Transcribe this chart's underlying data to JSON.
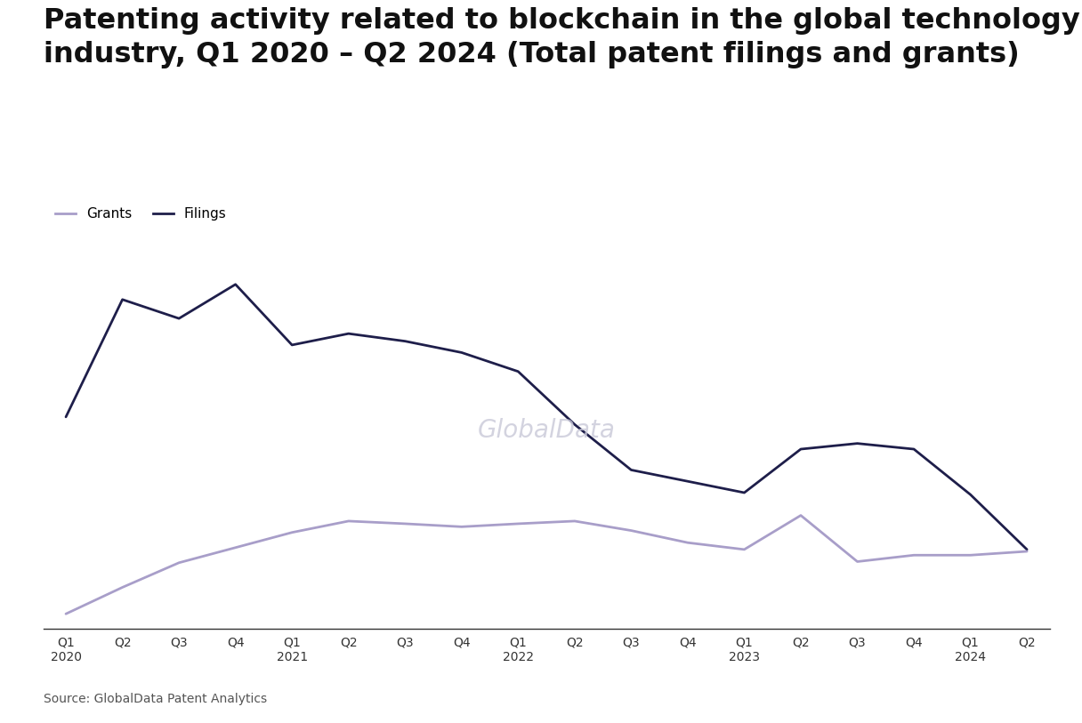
{
  "title": "Patenting activity related to blockchain in the global technology\nindustry, Q1 2020 – Q2 2024 (Total patent filings and grants)",
  "source": "Source: GlobalData Patent Analytics",
  "watermark": "GlobalData",
  "x_labels": [
    "Q1\n2020",
    "Q2",
    "Q3",
    "Q4",
    "Q1\n2021",
    "Q2",
    "Q3",
    "Q4",
    "Q1\n2022",
    "Q2",
    "Q3",
    "Q4",
    "Q1\n2023",
    "Q2",
    "Q3",
    "Q4",
    "Q1\n2024",
    "Q2"
  ],
  "filings": [
    560,
    870,
    820,
    910,
    750,
    780,
    760,
    730,
    680,
    540,
    420,
    390,
    360,
    475,
    490,
    475,
    355,
    210
  ],
  "grants": [
    40,
    110,
    175,
    215,
    255,
    285,
    278,
    270,
    278,
    285,
    260,
    228,
    210,
    300,
    178,
    195,
    195,
    205
  ],
  "filings_color": "#1e1e4a",
  "grants_color": "#a89ec9",
  "background_color": "#ffffff",
  "legend_fontsize": 11,
  "title_fontsize": 23,
  "source_fontsize": 10,
  "line_width": 2.0,
  "watermark_color": "#c8c8d8",
  "watermark_fontsize": 20,
  "ylim_max": 1050
}
